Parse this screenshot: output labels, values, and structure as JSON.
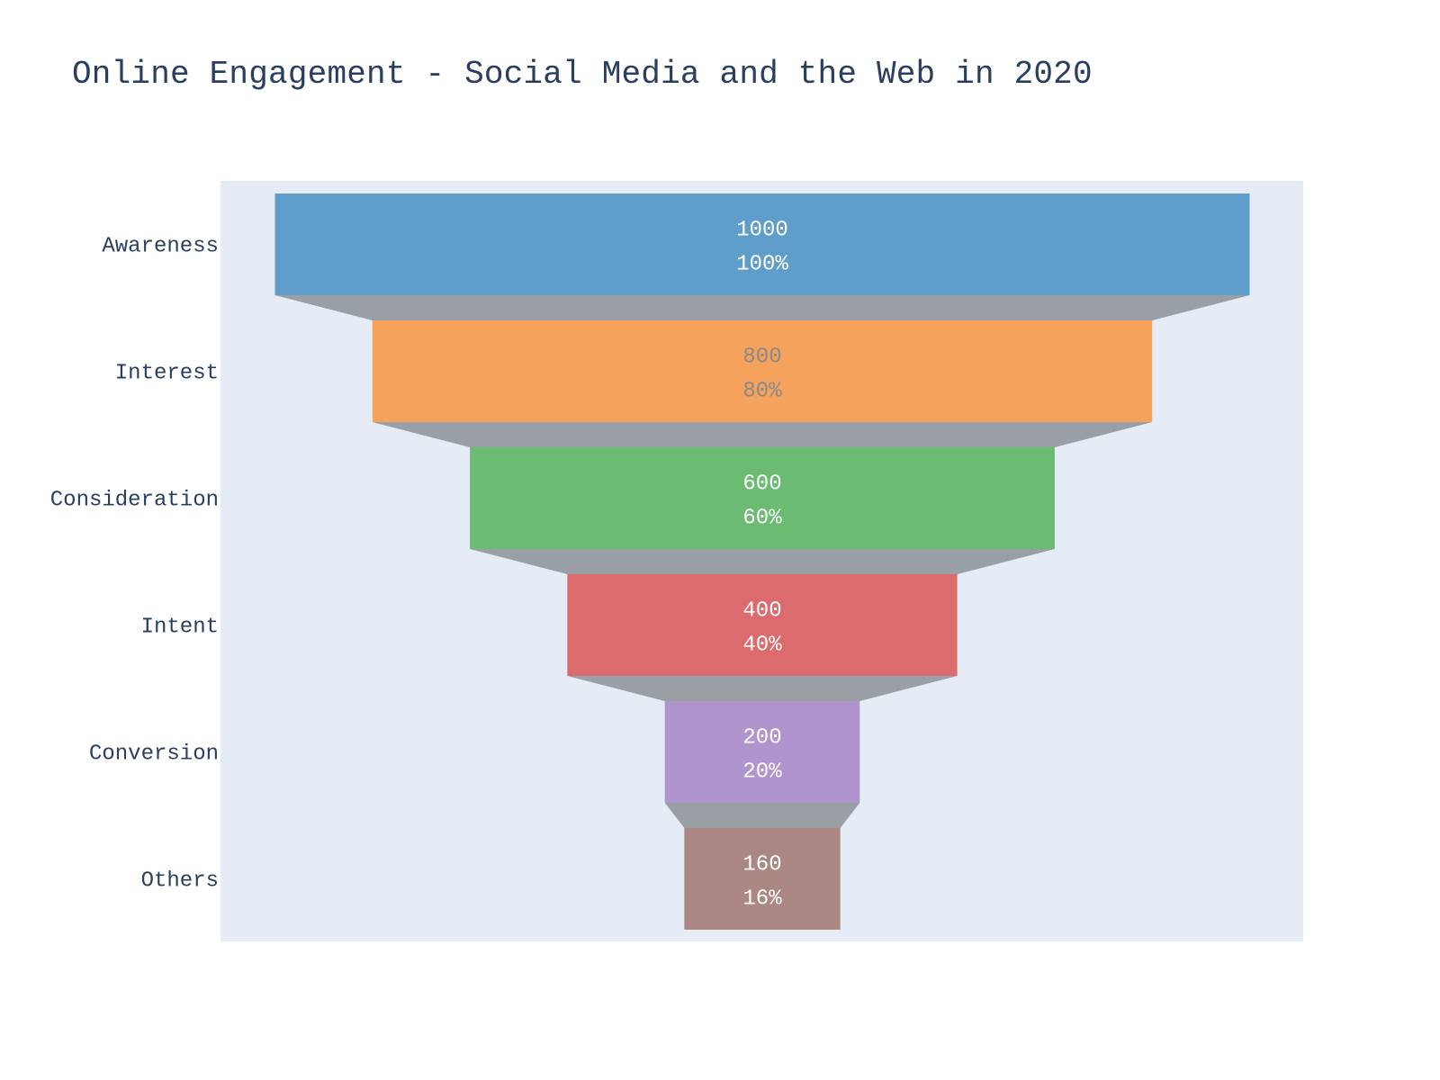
{
  "chart_data": {
    "type": "funnel",
    "title": "Online Engagement - Social Media and the Web in 2020",
    "stages": [
      "Awareness",
      "Interest",
      "Consideration",
      "Intent",
      "Conversion",
      "Others"
    ],
    "values": [
      1000,
      800,
      600,
      400,
      200,
      160
    ],
    "percent_labels": [
      "100%",
      "80%",
      "60%",
      "40%",
      "20%",
      "16%"
    ],
    "colors": [
      "#5f9ecb",
      "#f5a25d",
      "#6bbb72",
      "#dc6b6d",
      "#b094ce",
      "#aa8782"
    ],
    "label_colors": [
      "#ffffff",
      "#8a8a8a",
      "#ffffff",
      "#ffffff",
      "#ffffff",
      "#ffffff"
    ],
    "connector_color": "#9a9ea5",
    "plot_background": "#e5ecf6"
  }
}
